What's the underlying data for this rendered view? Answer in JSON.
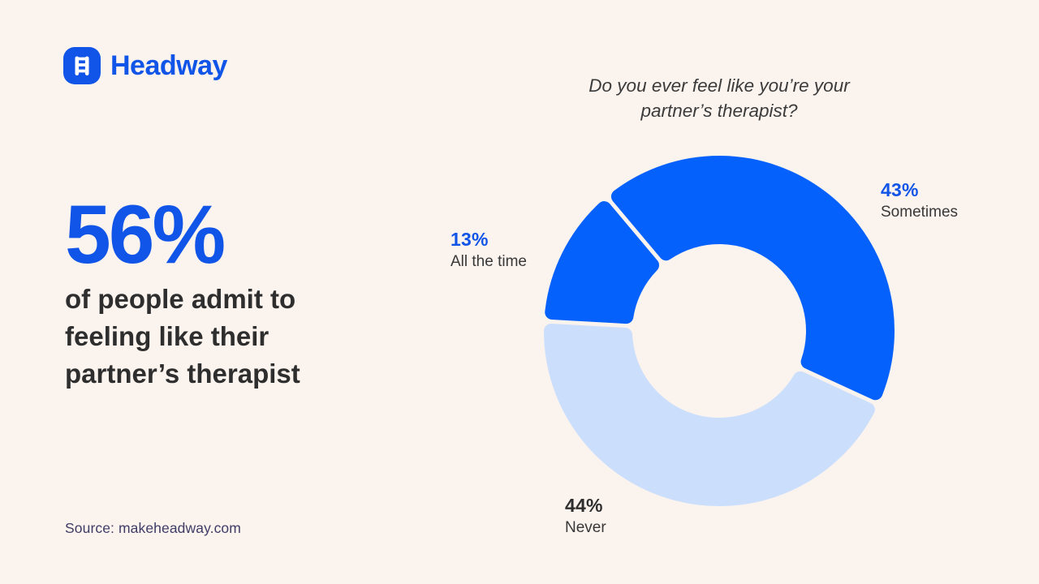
{
  "header": {
    "brand": "Headway"
  },
  "stat": {
    "value": "56%",
    "description_lines": [
      "of people admit to",
      "feeling like their",
      "partner’s therapist"
    ]
  },
  "source": {
    "text": "Source: makeheadway.com"
  },
  "chart_data": {
    "type": "pie",
    "subtype": "donut",
    "title": "Do you ever feel like you’re your partner’s therapist?",
    "title_lines": [
      "Do you ever feel like you’re your",
      "partner’s therapist?"
    ],
    "slices": [
      {
        "label": "Sometimes",
        "value": 43,
        "pct": "43%",
        "color": "#0561FC",
        "pct_color": "#1155E8"
      },
      {
        "label": "Never",
        "value": 44,
        "pct": "44%",
        "color": "#CBDFFD",
        "pct_color": "#2E2E2E"
      },
      {
        "label": "All the time",
        "value": 13,
        "pct": "13%",
        "color": "#0561FC",
        "pct_color": "#1155E8"
      }
    ],
    "layout": {
      "start_angle_deg": -40,
      "clockwise": true,
      "legend": "none",
      "labels_outside": true
    }
  },
  "colors": {
    "background": "#FBF3EE",
    "brand_blue": "#1155E8",
    "donut_blue": "#0561FC",
    "donut_light_blue": "#CBDFFD",
    "text_dark": "#2E2E2E",
    "label_gray": "#383838",
    "source_text": "#3F3C66"
  }
}
